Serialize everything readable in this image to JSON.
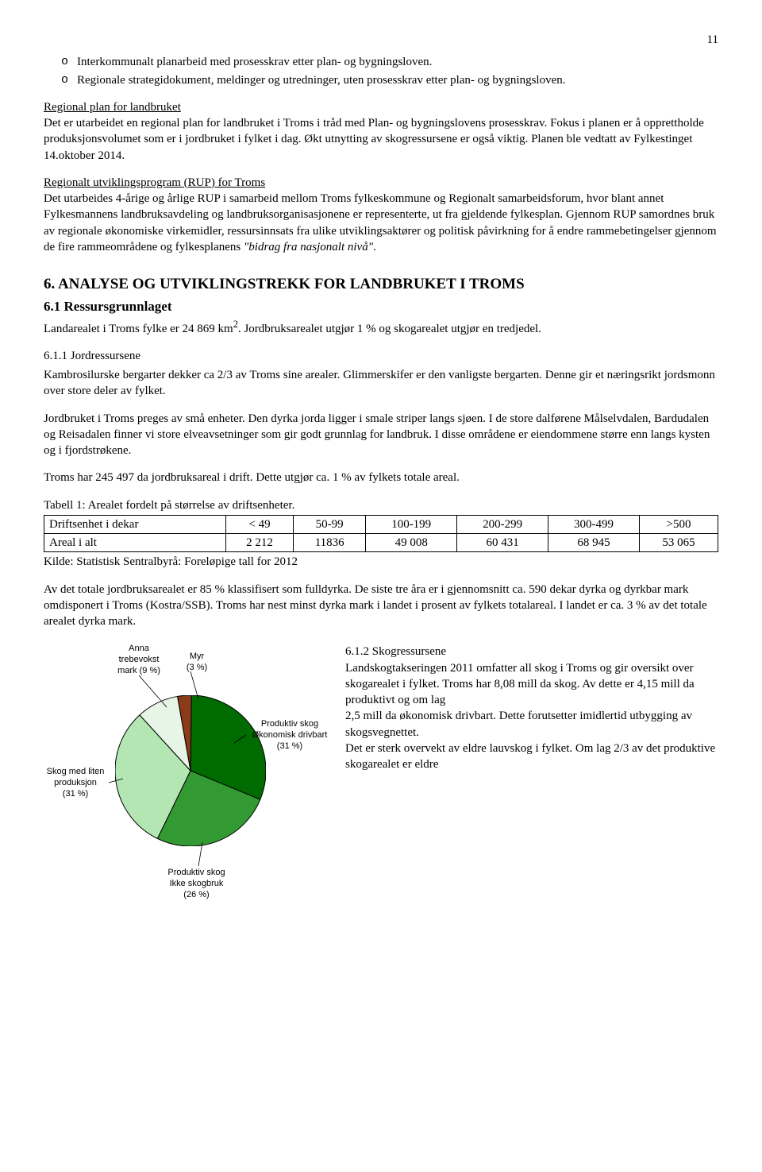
{
  "page_number": "11",
  "bullets": [
    "Interkommunalt planarbeid med prosesskrav etter plan- og bygningsloven.",
    "Regionale strategidokument, meldinger og utredninger, uten prosesskrav etter plan- og bygningsloven."
  ],
  "regional_plan": {
    "heading": "Regional plan for landbruket",
    "body": "Det er utarbeidet en regional plan for landbruket i Troms i tråd med Plan- og bygningslovens prosesskrav. Fokus i planen er å opprettholde produksjonsvolumet som er i jordbruket i fylket i dag. Økt utnytting av skogressursene er også viktig. Planen ble vedtatt av Fylkestinget 14.oktober 2014."
  },
  "rup": {
    "heading": "Regionalt utviklingsprogram (RUP) for Troms",
    "body_pre": "Det utarbeides 4-årige og årlige RUP i samarbeid mellom Troms fylkeskommune og Regionalt samarbeidsforum, hvor blant annet Fylkesmannens landbruksavdeling og landbruksorganisasjonene er representerte, ut fra gjeldende fylkesplan. Gjennom RUP samordnes bruk av regionale økonomiske virkemidler, ressursinnsats fra ulike utviklingsaktører og politisk påvirkning for å endre rammebetingelser gjennom de fire rammeområdene og fylkesplanens ",
    "body_quote": "\"bidrag fra nasjonalt nivå\"",
    "body_post": "."
  },
  "section6": {
    "title": "6. ANALYSE OG UTVIKLINGSTREKK FOR LANDBRUKET I TROMS",
    "sub61_title": "6.1 Ressursgrunnlaget",
    "sub61_body_a": "Landarealet i Troms fylke er 24 869 km",
    "sub61_sup": "2",
    "sub61_body_b": ". Jordbruksarealet utgjør 1 % og skogarealet utgjør en tredjedel.",
    "sub611_title": "6.1.1 Jordressursene",
    "sub611_p1": "Kambrosilurske bergarter dekker ca 2/3 av Troms sine arealer. Glimmerskifer er den vanligste bergarten. Denne gir et næringsrikt jordsmonn over store deler av fylket.",
    "sub611_p2": "Jordbruket i Troms preges av små enheter. Den dyrka jorda ligger i smale striper langs sjøen. I de store dalførene Målselvdalen, Bardudalen og Reisadalen finner vi store elveavsetninger som gir godt grunnlag for landbruk. I disse områdene er eiendommene større enn langs kysten og i fjordstrøkene.",
    "sub611_p3": "Troms har 245 497 da jordbruksareal i drift. Dette utgjør ca. 1 % av fylkets totale areal.",
    "table_caption": "Tabell 1: Arealet fordelt på størrelse av driftsenheter.",
    "table": {
      "columns": [
        "Driftsenhet i dekar",
        "< 49",
        "50-99",
        "100-199",
        "200-299",
        "300-499",
        ">500"
      ],
      "rows": [
        [
          "Areal i alt",
          "2 212",
          "11836",
          "49 008",
          "60 431",
          "68 945",
          "53 065"
        ]
      ]
    },
    "kilde": "Kilde: Statistisk Sentralbyrå: Foreløpige tall for 2012",
    "after_table_p": "Av det totale jordbruksarealet er 85 % klassifisert som fulldyrka. De siste tre åra er i gjennomsnitt ca. 590 dekar dyrka og dyrkbar mark omdisponert i Troms (Kostra/SSB).  Troms har nest minst dyrka mark i landet i prosent av fylkets totalareal. I landet er ca. 3 % av det totale arealet dyrka mark.",
    "sub612_title": "6.1.2 Skogressursene",
    "sub612_body": "Landskogtakseringen 2011 omfatter all skog i Troms og gir oversikt over skogarealet i fylket. Troms har 8,08 mill da skog. Av dette er 4,15 mill da produktivt og om lag\n2,5 mill da økonomisk drivbart. Dette forutsetter imidlertid utbygging av skogsvegnettet.\nDet er sterk overvekt av eldre lauvskog i fylket. Om lag 2/3 av det produktive skogarealet er eldre"
  },
  "pie": {
    "type": "pie",
    "background_color": "#ffffff",
    "border_color": "#000000",
    "leader_color": "#000000",
    "label_fontsize": 11,
    "radius": 95,
    "slices": [
      {
        "label_l1": "Produktiv skog",
        "label_l2": "Økonomisk drivbart",
        "label_l3": "(31 %)",
        "value": 31,
        "color": "#006b00"
      },
      {
        "label_l1": "Produktiv skog",
        "label_l2": "Ikke skogbruk",
        "label_l3": "(26 %)",
        "value": 26,
        "color": "#339933"
      },
      {
        "label_l1": "Skog med liten",
        "label_l2": "produksjon",
        "label_l3": "(31 %)",
        "value": 31,
        "color": "#b3e6b3"
      },
      {
        "label_l1": "Anna",
        "label_l2": "trebevokst",
        "label_l3": "mark (9 %)",
        "value": 9,
        "color": "#e6f5e6"
      },
      {
        "label_l1": "Myr",
        "label_l2": "(3 %)",
        "label_l3": "",
        "value": 3,
        "color": "#8b3a1a"
      }
    ]
  }
}
